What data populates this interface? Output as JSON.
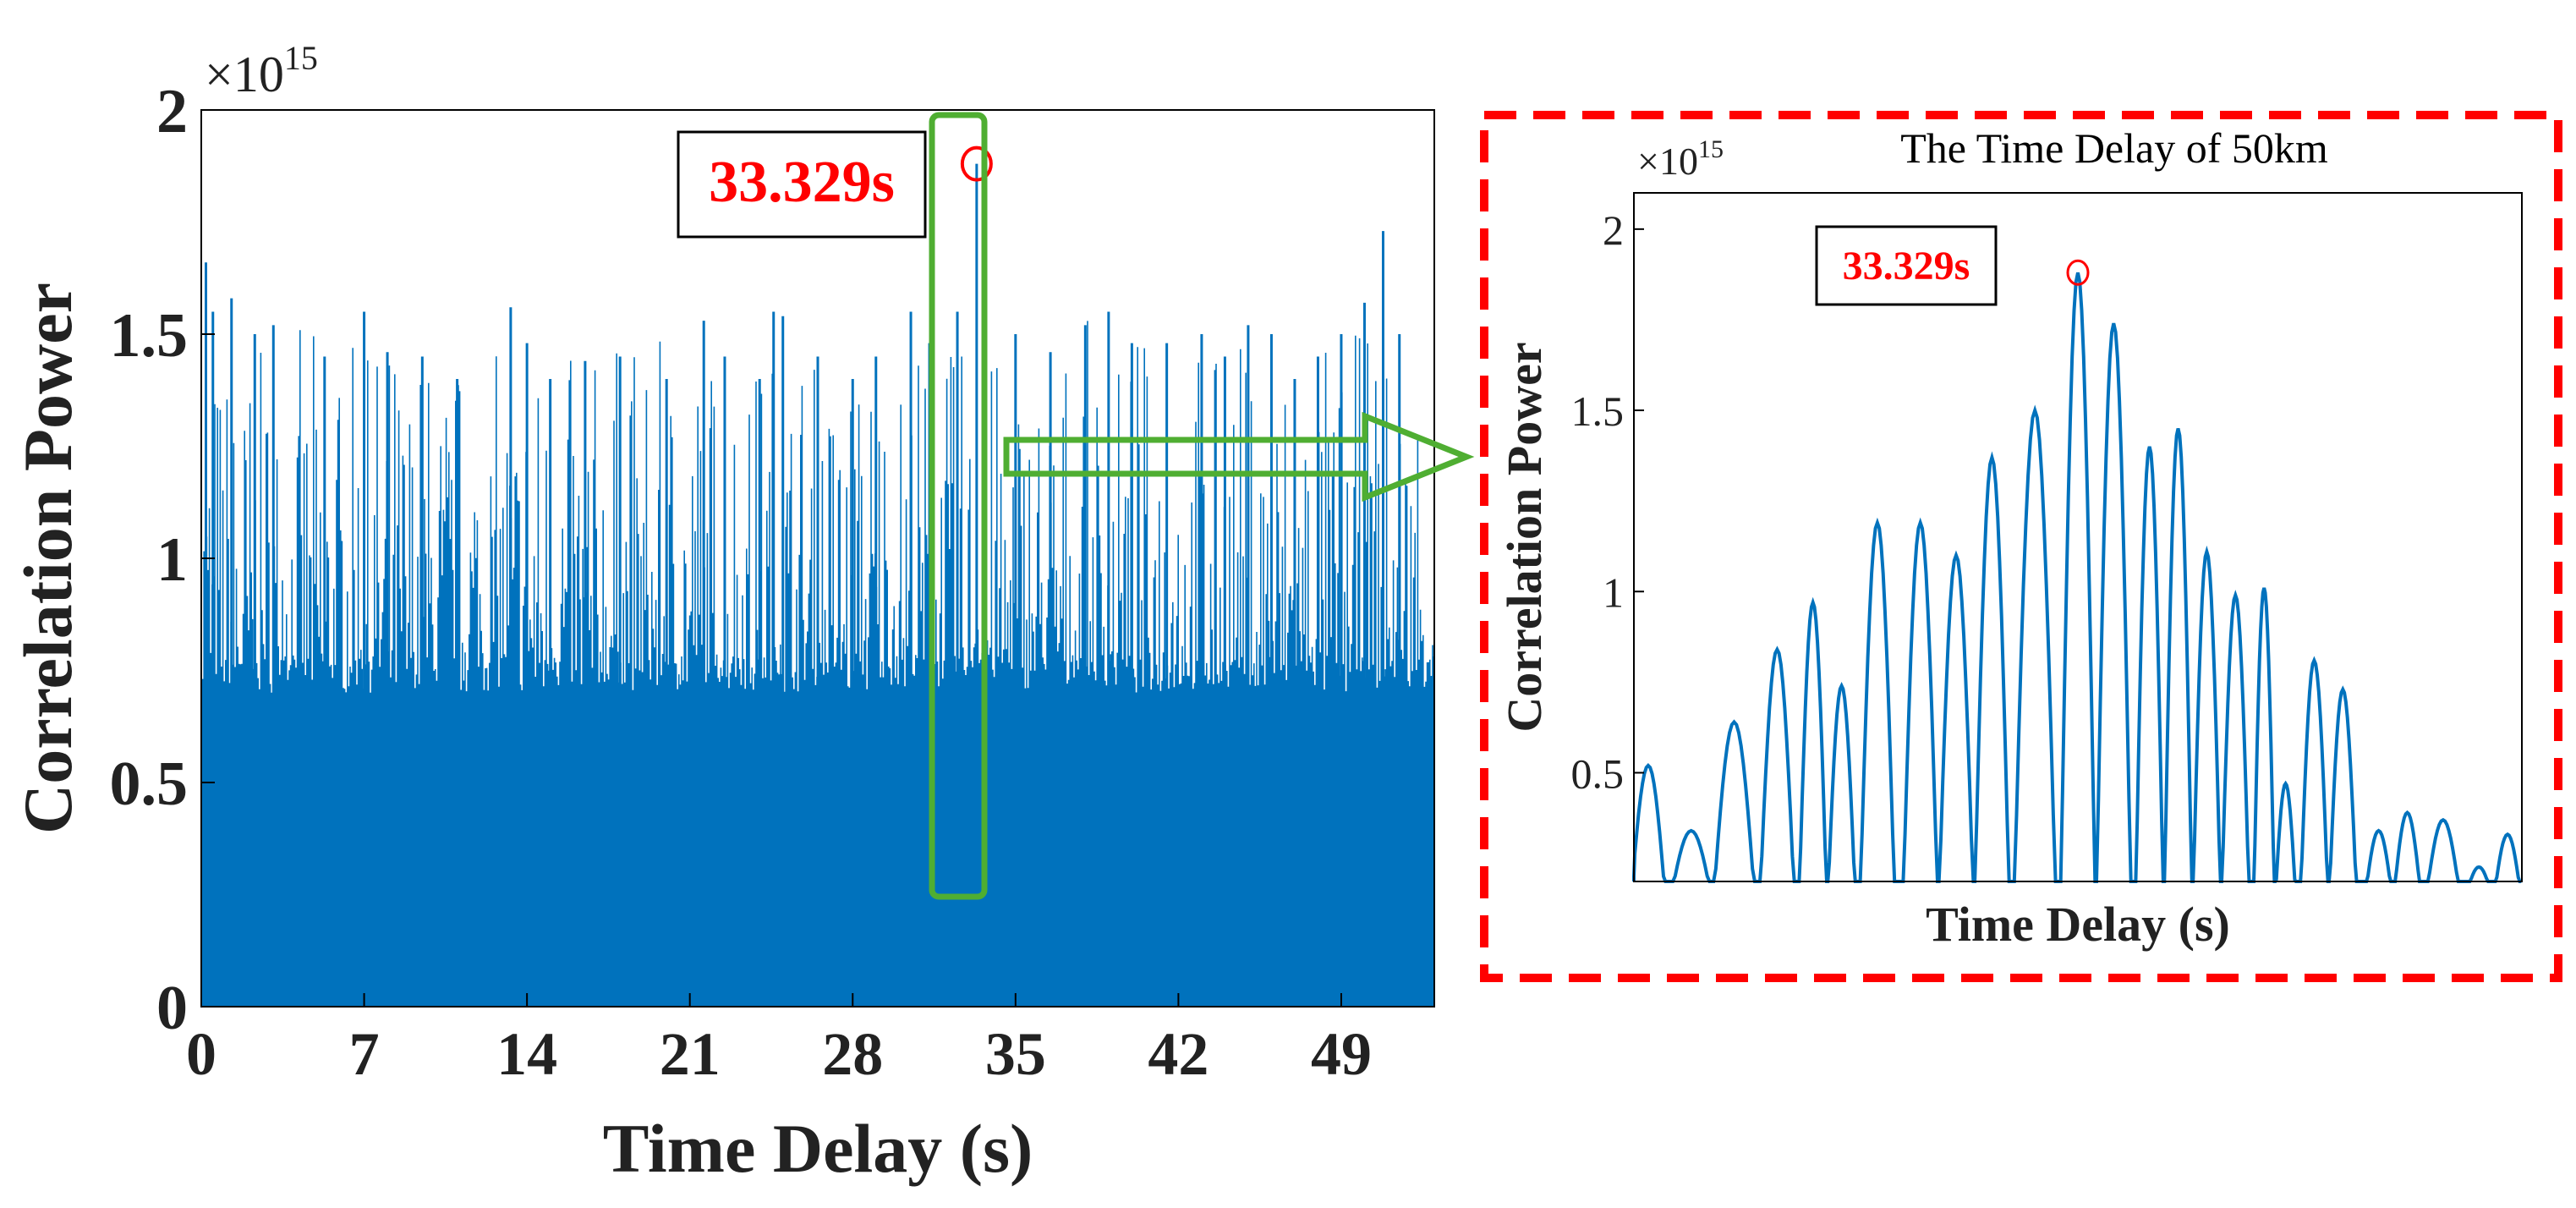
{
  "chart_data": [
    {
      "type": "area",
      "title": "",
      "xlabel": "Time Delay (s)",
      "ylabel": "Correlation Power",
      "y_scale_label": "×10^15",
      "y_exponent": 15,
      "xlim": [
        0,
        53
      ],
      "ylim": [
        0,
        2
      ],
      "x_ticks": [
        0,
        7,
        14,
        21,
        28,
        35,
        42,
        49
      ],
      "x_tick_labels": [
        "0",
        "7",
        "14",
        "21",
        "28",
        "35",
        "42",
        "49"
      ],
      "y_ticks": [
        0,
        0.5,
        1,
        1.5,
        2
      ],
      "y_tick_labels": [
        "0",
        "0.5",
        "1",
        "1.5",
        "2"
      ],
      "color": "#0072BD",
      "grid": false,
      "noise_floor": 0.7,
      "series": [
        {
          "x": [
            0.2,
            0.5,
            1.3,
            2.3,
            3.1,
            5.3,
            7.0,
            8.0,
            9.5,
            11.0,
            13.3,
            14.0,
            15.0,
            16.5,
            18.0,
            20.0,
            21.6,
            22.5,
            24.0,
            24.6,
            25.0,
            26.5,
            28.0,
            29.0,
            30.5,
            31.3,
            32.5,
            33.329,
            35.0,
            36.5,
            38.0,
            39.0,
            40.0,
            41.5,
            43.0,
            44.0,
            45.0,
            46.0,
            47.0,
            48.0,
            49.0,
            50.0,
            50.8,
            51.5
          ],
          "y": [
            1.66,
            1.55,
            1.58,
            1.5,
            1.52,
            1.45,
            1.55,
            1.46,
            1.45,
            1.4,
            1.56,
            1.48,
            1.4,
            1.44,
            1.45,
            1.4,
            1.53,
            1.45,
            1.4,
            1.55,
            1.54,
            1.45,
            1.4,
            1.45,
            1.55,
            1.48,
            1.55,
            1.88,
            1.5,
            1.46,
            1.52,
            1.55,
            1.48,
            1.48,
            1.5,
            1.45,
            1.52,
            1.5,
            1.4,
            1.45,
            1.5,
            1.57,
            1.73,
            1.5
          ]
        }
      ],
      "annotations": [
        {
          "text": "33.329s",
          "x": 33.329,
          "y": 1.88,
          "color": "#FF0000"
        }
      ]
    },
    {
      "type": "line",
      "title": "The Time Delay of 50km",
      "xlabel": "Time Delay (s)",
      "ylabel": "Correlation Power",
      "y_scale_label": "×10^15",
      "y_exponent": 15,
      "ylim": [
        0.2,
        2.1
      ],
      "y_ticks": [
        0.5,
        1,
        1.5,
        2
      ],
      "y_tick_labels": [
        "0.5",
        "1",
        "1.5",
        "2"
      ],
      "x_ticks": [],
      "color": "#0072BD",
      "grid": false,
      "series": [
        {
          "lobe_peaks": [
            0.52,
            0.34,
            0.64,
            0.84,
            0.97,
            0.74,
            1.19,
            1.19,
            1.1,
            1.37,
            1.5,
            1.88,
            1.74,
            1.4,
            1.45,
            1.11,
            0.99,
            1.01,
            0.47,
            0.81,
            0.73,
            0.34,
            0.39,
            0.37,
            0.24,
            0.33
          ],
          "lobe_centers": [
            0.02,
            0.08,
            0.14,
            0.2,
            0.25,
            0.29,
            0.34,
            0.4,
            0.45,
            0.5,
            0.56,
            0.62,
            0.67,
            0.72,
            0.76,
            0.8,
            0.84,
            0.88,
            0.91,
            0.95,
            0.99,
            1.04,
            1.08,
            1.13,
            1.18,
            1.22
          ]
        }
      ],
      "annotations": [
        {
          "text": "33.329s",
          "x": 33.329,
          "y": 1.88,
          "color": "#FF0000"
        }
      ]
    }
  ],
  "colors": {
    "series": "#0072BD",
    "annotation": "#FF0000",
    "highlight": "#4FAE32",
    "zoom_frame": "#FF0000"
  }
}
